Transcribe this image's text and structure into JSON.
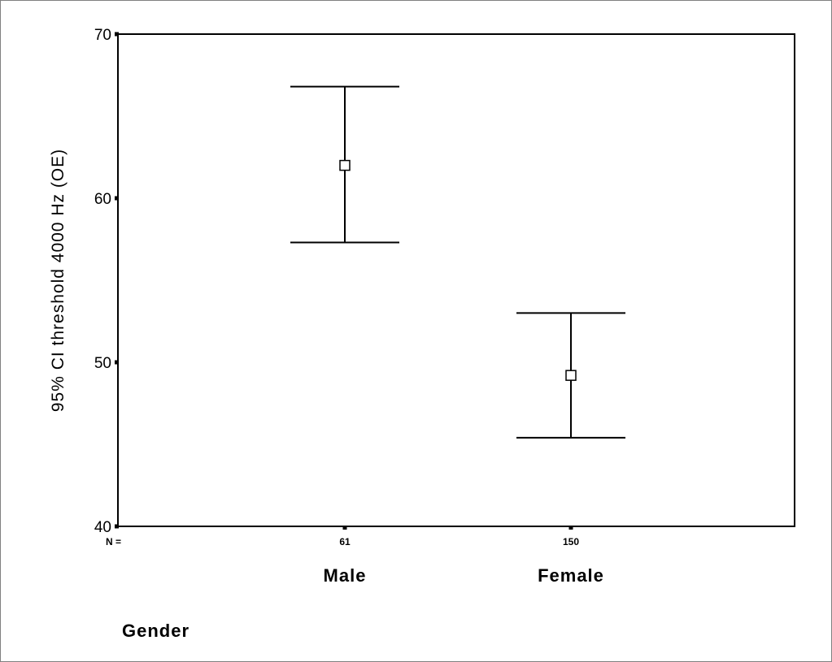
{
  "chart_data": {
    "type": "errorbar",
    "title": "",
    "xlabel": "Gender",
    "ylabel": "95% CI threshold 4000 Hz (OE)",
    "ylim": [
      40,
      70
    ],
    "yticks": [
      40,
      50,
      60,
      70
    ],
    "n_prefix": "N =",
    "categories": [
      "Male",
      "Female"
    ],
    "n": [
      "61",
      "150"
    ],
    "series": [
      {
        "mean": [
          62.0,
          49.2
        ],
        "lower": [
          57.3,
          45.4
        ],
        "upper": [
          66.8,
          53.0
        ]
      }
    ],
    "grid": false,
    "legend": "none"
  }
}
